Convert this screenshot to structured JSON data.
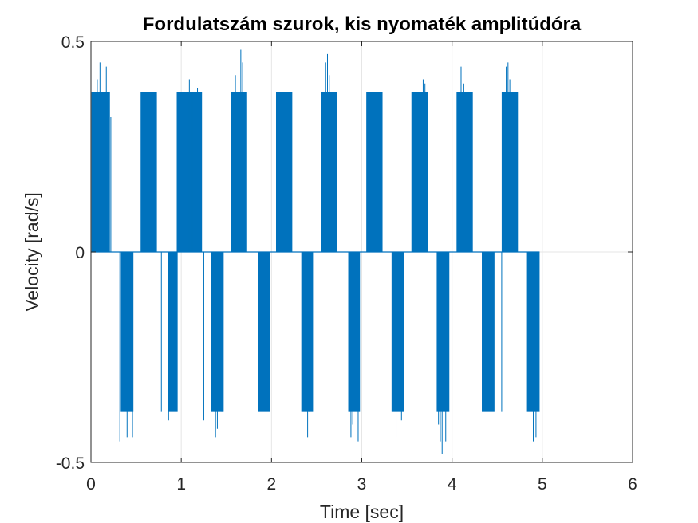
{
  "chart_data": {
    "type": "line",
    "title": "Fordulatszám szurok, kis nyomaték amplitúdóra",
    "xlabel": "Time [sec]",
    "ylabel": "Velocity [rad/s]",
    "xlim": [
      0,
      6
    ],
    "ylim": [
      -0.5,
      0.5
    ],
    "xticks": [
      0,
      1,
      2,
      3,
      4,
      5,
      6
    ],
    "xtick_labels": [
      "0",
      "1",
      "2",
      "3",
      "4",
      "5",
      "6"
    ],
    "yticks": [
      -0.5,
      0,
      0.5
    ],
    "ytick_labels": [
      "-0.5",
      "0",
      "0.5"
    ],
    "grid": true,
    "line_color": "#0072BD",
    "series": [
      {
        "level": 0.38,
        "positive_bursts": [
          [
            0.01,
            0.21
          ],
          [
            0.55,
            0.73
          ],
          [
            0.95,
            1.23
          ],
          [
            1.55,
            1.73
          ],
          [
            2.05,
            2.23
          ],
          [
            2.55,
            2.73
          ],
          [
            3.05,
            3.23
          ],
          [
            3.55,
            3.73
          ],
          [
            4.05,
            4.23
          ],
          [
            4.55,
            4.73
          ]
        ],
        "negative_bursts": [
          [
            0.33,
            0.47
          ],
          [
            0.85,
            0.96
          ],
          [
            1.33,
            1.47
          ],
          [
            1.85,
            1.98
          ],
          [
            2.33,
            2.46
          ],
          [
            2.85,
            2.98
          ],
          [
            3.33,
            3.47
          ],
          [
            3.83,
            3.97
          ],
          [
            4.33,
            4.47
          ],
          [
            4.83,
            4.97
          ]
        ],
        "spikes": [
          [
            0.01,
            0.38
          ],
          [
            0.02,
            0.38
          ],
          [
            0.07,
            0.41
          ],
          [
            0.1,
            0.45
          ],
          [
            0.17,
            0.44
          ],
          [
            0.22,
            0.32
          ],
          [
            0.32,
            -0.45
          ],
          [
            0.36,
            -0.29
          ],
          [
            0.4,
            -0.44
          ],
          [
            0.46,
            -0.44
          ],
          [
            0.78,
            -0.38
          ],
          [
            0.86,
            -0.4
          ],
          [
            1.09,
            0.41
          ],
          [
            1.12,
            0.38
          ],
          [
            1.18,
            0.39
          ],
          [
            1.25,
            -0.4
          ],
          [
            1.38,
            -0.44
          ],
          [
            1.4,
            -0.42
          ],
          [
            1.45,
            -0.38
          ],
          [
            1.6,
            0.42
          ],
          [
            1.66,
            0.48
          ],
          [
            1.68,
            0.45
          ],
          [
            2.4,
            -0.44
          ],
          [
            2.42,
            -0.38
          ],
          [
            2.6,
            0.45
          ],
          [
            2.62,
            0.47
          ],
          [
            2.64,
            0.42
          ],
          [
            2.88,
            -0.44
          ],
          [
            2.9,
            -0.41
          ],
          [
            2.96,
            -0.45
          ],
          [
            3.38,
            -0.44
          ],
          [
            3.44,
            -0.4
          ],
          [
            3.68,
            0.41
          ],
          [
            3.7,
            0.4
          ],
          [
            3.85,
            -0.41
          ],
          [
            3.87,
            -0.45
          ],
          [
            3.89,
            -0.48
          ],
          [
            3.93,
            -0.45
          ],
          [
            4.1,
            0.44
          ],
          [
            4.13,
            0.4
          ],
          [
            4.55,
            -0.38
          ],
          [
            4.6,
            0.44
          ],
          [
            4.62,
            0.45
          ],
          [
            4.64,
            0.41
          ],
          [
            4.9,
            -0.45
          ],
          [
            4.93,
            -0.44
          ]
        ]
      }
    ]
  }
}
